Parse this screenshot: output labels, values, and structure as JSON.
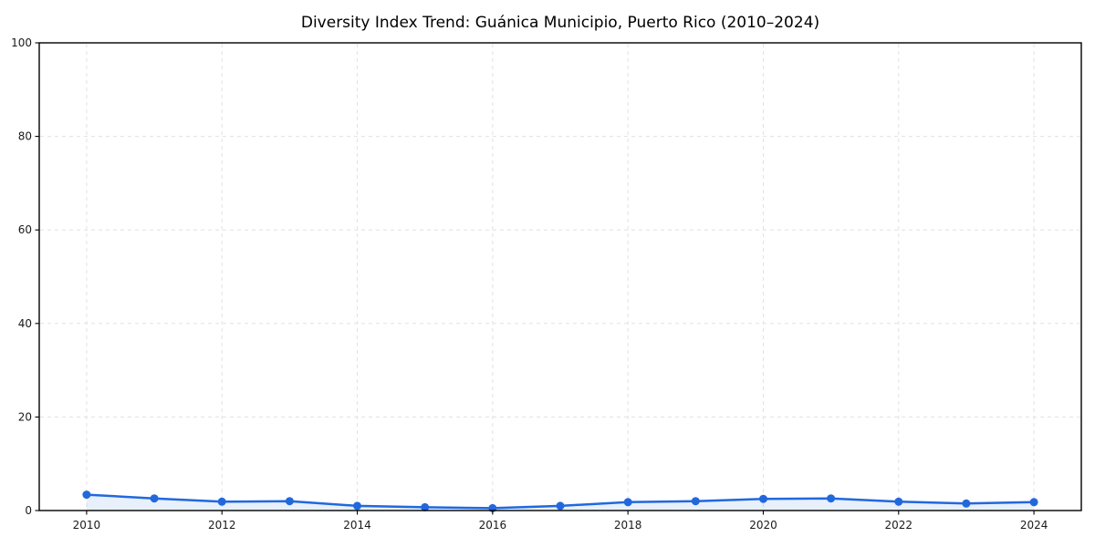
{
  "figure": {
    "title": "Diversity Index Trend: Guánica Municipio, Puerto Rico (2010–2024)"
  },
  "chart_data": {
    "type": "line",
    "title": "Diversity Index Trend: Guánica Municipio, Puerto Rico (2010–2024)",
    "x": [
      2010,
      2011,
      2012,
      2013,
      2014,
      2015,
      2016,
      2017,
      2018,
      2019,
      2020,
      2021,
      2022,
      2023,
      2024
    ],
    "series": [
      {
        "name": "Diversity Index",
        "values": [
          3.4,
          2.6,
          1.9,
          2.0,
          1.0,
          0.7,
          0.5,
          1.0,
          1.8,
          2.0,
          2.5,
          2.6,
          1.9,
          1.5,
          1.8
        ]
      }
    ],
    "xlabel": "",
    "ylabel": "",
    "xlim": [
      2009.3,
      2024.7
    ],
    "ylim": [
      0,
      100
    ],
    "xticks": [
      2010,
      2012,
      2014,
      2016,
      2018,
      2020,
      2022,
      2024
    ],
    "yticks": [
      0,
      20,
      40,
      60,
      80,
      100
    ],
    "grid": true,
    "grid_style": "dashed",
    "legend_position": "none",
    "marker": "circle",
    "area_fill": true,
    "colors": {
      "line": "#2268dd",
      "marker": "#2268dd",
      "area_fill": "rgba(34, 104, 221, 0.10)",
      "grid": "#e1e1e1",
      "axis": "#000000",
      "tick_label": "#1a1a1a",
      "background": "#ffffff"
    }
  }
}
